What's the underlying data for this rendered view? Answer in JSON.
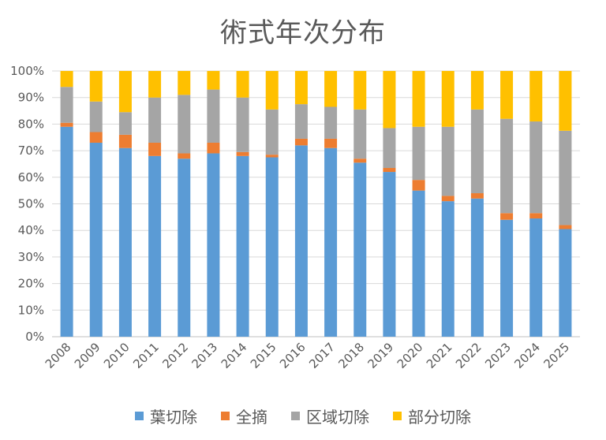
{
  "chart_data": {
    "type": "bar",
    "stacked": true,
    "percent": true,
    "title": "術式年次分布",
    "categories": [
      "2008",
      "2009",
      "2010",
      "2011",
      "2012",
      "2013",
      "2014",
      "2015",
      "2016",
      "2017",
      "2018",
      "2019",
      "2020",
      "2021",
      "2022",
      "2023",
      "2024",
      "2025"
    ],
    "series": [
      {
        "name": "葉切除",
        "color": "#5B9BD5",
        "values": [
          79,
          73,
          71,
          68,
          67,
          69,
          68,
          67.5,
          72,
          71,
          65.5,
          62,
          55,
          51,
          52,
          44,
          44.5,
          40.5
        ]
      },
      {
        "name": "全摘",
        "color": "#ED7D31",
        "values": [
          1.5,
          4,
          5,
          5,
          2,
          4,
          1.5,
          1,
          2.5,
          3.5,
          1.5,
          1.5,
          4,
          2,
          2,
          2.5,
          2,
          1.5
        ]
      },
      {
        "name": "区域切除",
        "color": "#A5A5A5",
        "values": [
          13.5,
          11.5,
          8.5,
          17,
          22,
          20,
          20.5,
          17,
          13,
          12,
          18.5,
          15,
          20,
          26,
          31.5,
          35.5,
          34.5,
          35.5
        ]
      },
      {
        "name": "部分切除",
        "color": "#FFC000",
        "values": [
          6,
          11.5,
          15.5,
          10,
          9,
          7,
          10,
          14.5,
          12.5,
          13.5,
          14.5,
          21.5,
          21,
          21,
          14.5,
          18,
          19,
          22.5
        ]
      }
    ],
    "ylim": [
      0,
      100
    ],
    "yticks": [
      "0%",
      "10%",
      "20%",
      "30%",
      "40%",
      "50%",
      "60%",
      "70%",
      "80%",
      "90%",
      "100%"
    ],
    "grid": true,
    "legend_position": "bottom"
  }
}
